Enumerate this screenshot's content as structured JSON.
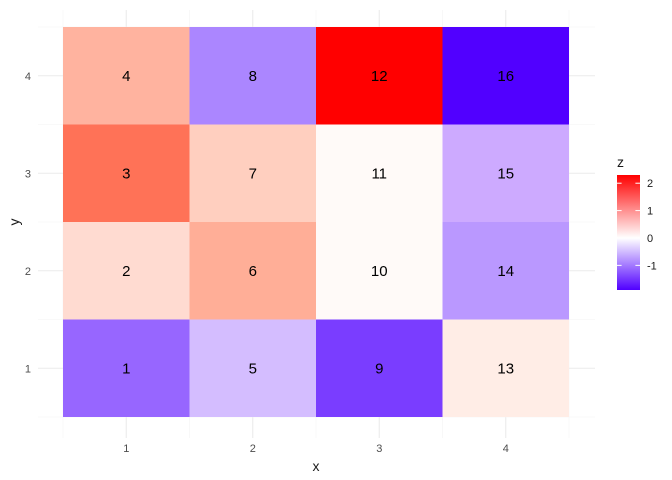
{
  "chart_data": {
    "type": "heatmap",
    "xlabel": "x",
    "ylabel": "y",
    "x_categories": [
      "1",
      "2",
      "3",
      "4"
    ],
    "y_categories": [
      "1",
      "2",
      "3",
      "4"
    ],
    "xlim": [
      0.5,
      4.5
    ],
    "ylim": [
      0.5,
      4.5
    ],
    "grid": true,
    "legend": {
      "title": "z",
      "placement": "right",
      "ticks": [
        -1,
        0,
        1,
        2
      ],
      "range": [
        -1.9,
        2.3
      ],
      "low_color": "#5000ff",
      "mid_color": "#ffffff",
      "high_color": "#ff0000"
    },
    "cells": [
      {
        "x": 1,
        "y": 1,
        "label": "1",
        "color": "#9766ff"
      },
      {
        "x": 1,
        "y": 2,
        "label": "2",
        "color": "#ffdbd1"
      },
      {
        "x": 1,
        "y": 3,
        "label": "3",
        "color": "#ff7257"
      },
      {
        "x": 1,
        "y": 4,
        "label": "4",
        "color": "#ffb39f"
      },
      {
        "x": 2,
        "y": 1,
        "label": "5",
        "color": "#d4bdff"
      },
      {
        "x": 2,
        "y": 2,
        "label": "6",
        "color": "#ffae97"
      },
      {
        "x": 2,
        "y": 3,
        "label": "7",
        "color": "#ffcfbf"
      },
      {
        "x": 2,
        "y": 4,
        "label": "8",
        "color": "#ab86ff"
      },
      {
        "x": 3,
        "y": 1,
        "label": "9",
        "color": "#7a3dff"
      },
      {
        "x": 3,
        "y": 2,
        "label": "10",
        "color": "#fffaf8"
      },
      {
        "x": 3,
        "y": 3,
        "label": "11",
        "color": "#fffaf8"
      },
      {
        "x": 3,
        "y": 4,
        "label": "12",
        "color": "#ff0000"
      },
      {
        "x": 4,
        "y": 1,
        "label": "13",
        "color": "#ffede6"
      },
      {
        "x": 4,
        "y": 2,
        "label": "14",
        "color": "#ba98ff"
      },
      {
        "x": 4,
        "y": 3,
        "label": "15",
        "color": "#cdaaff"
      },
      {
        "x": 4,
        "y": 4,
        "label": "16",
        "color": "#5100ff"
      }
    ]
  }
}
